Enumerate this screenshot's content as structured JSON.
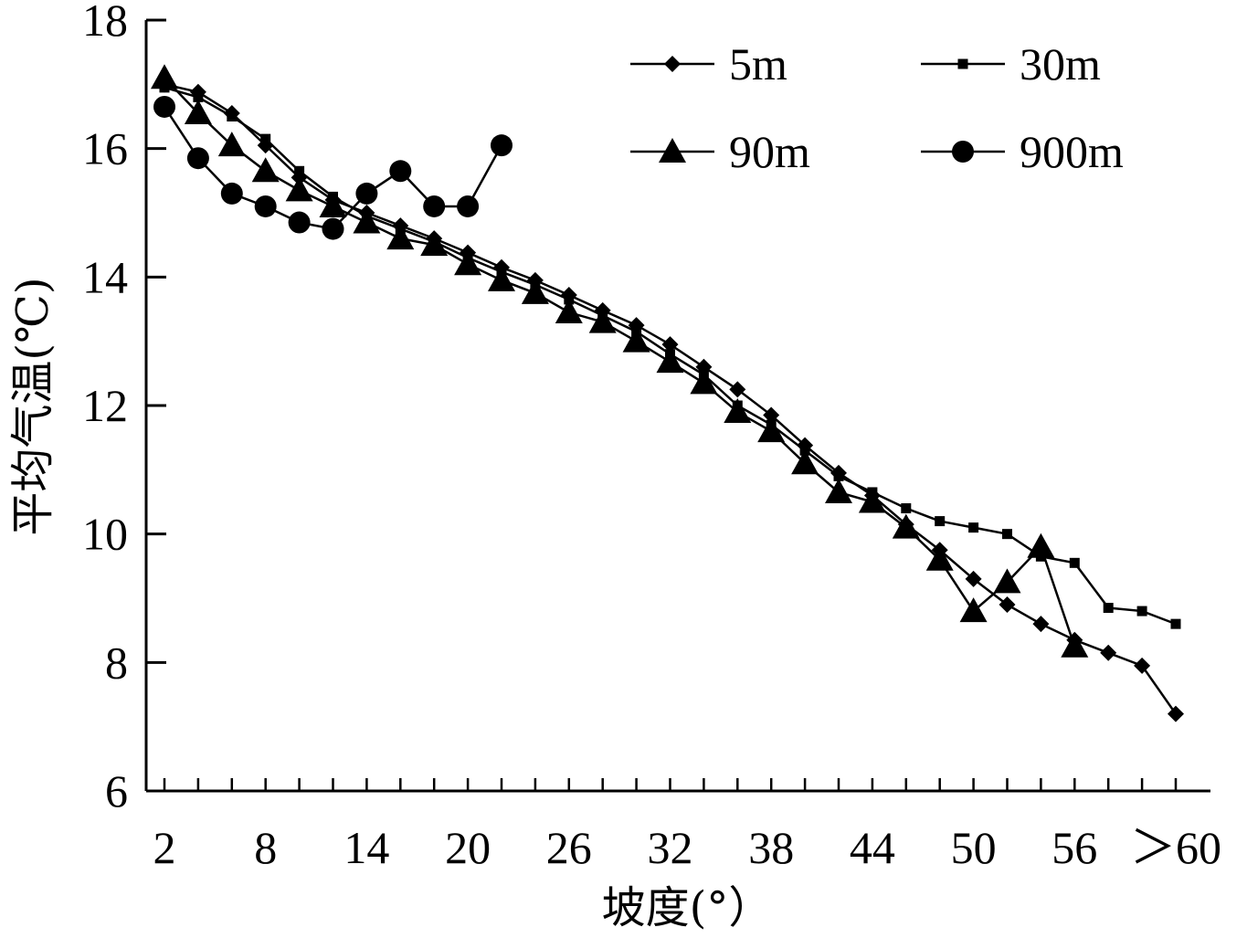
{
  "chart_data": {
    "type": "line",
    "xlabel": "坡度(°）",
    "ylabel": "平均气温(℃)",
    "ylim": [
      6,
      18
    ],
    "yticks": [
      6,
      8,
      10,
      12,
      14,
      16,
      18
    ],
    "x_categories": [
      "2",
      "4",
      "6",
      "8",
      "10",
      "12",
      "14",
      "16",
      "18",
      "20",
      "22",
      "24",
      "26",
      "28",
      "30",
      "32",
      "34",
      "36",
      "38",
      "40",
      "42",
      "44",
      "46",
      "48",
      "50",
      "52",
      "54",
      "56",
      "58",
      "60",
      "＞60"
    ],
    "x_tick_labels": [
      "2",
      "8",
      "14",
      "20",
      "26",
      "32",
      "38",
      "44",
      "50",
      "56",
      "＞60"
    ],
    "legend": {
      "placement": "top-right",
      "columns": 2
    },
    "grid": false,
    "series": [
      {
        "name": "5m",
        "marker": "diamond",
        "x": [
          "2",
          "4",
          "6",
          "8",
          "10",
          "12",
          "14",
          "16",
          "18",
          "20",
          "22",
          "24",
          "26",
          "28",
          "30",
          "32",
          "34",
          "36",
          "38",
          "40",
          "42",
          "44",
          "46",
          "48",
          "50",
          "52",
          "54",
          "56",
          "58",
          "60",
          "＞60"
        ],
        "values": [
          17.0,
          16.88,
          16.55,
          16.05,
          15.55,
          15.2,
          15.0,
          14.8,
          14.6,
          14.38,
          14.15,
          13.95,
          13.72,
          13.48,
          13.25,
          12.95,
          12.6,
          12.25,
          11.85,
          11.38,
          10.95,
          10.6,
          10.15,
          9.75,
          9.3,
          8.9,
          8.6,
          8.35,
          8.15,
          7.95,
          7.2
        ]
      },
      {
        "name": "30m",
        "marker": "square",
        "x": [
          "2",
          "4",
          "6",
          "8",
          "10",
          "12",
          "14",
          "16",
          "18",
          "20",
          "22",
          "24",
          "26",
          "28",
          "30",
          "32",
          "34",
          "36",
          "38",
          "40",
          "42",
          "44",
          "46",
          "48",
          "50",
          "52",
          "54",
          "56",
          "58",
          "60",
          "＞60"
        ],
        "values": [
          16.95,
          16.8,
          16.5,
          16.15,
          15.65,
          15.25,
          14.95,
          14.75,
          14.55,
          14.3,
          14.08,
          13.88,
          13.65,
          13.4,
          13.15,
          12.8,
          12.48,
          12.0,
          11.7,
          11.3,
          10.9,
          10.65,
          10.4,
          10.2,
          10.1,
          10.0,
          9.65,
          9.55,
          8.85,
          8.8,
          8.6
        ]
      },
      {
        "name": "90m",
        "marker": "triangle",
        "x": [
          "2",
          "4",
          "6",
          "8",
          "10",
          "12",
          "14",
          "16",
          "18",
          "20",
          "22",
          "24",
          "26",
          "28",
          "30",
          "32",
          "34",
          "36",
          "38",
          "40",
          "42",
          "44",
          "46",
          "48",
          "50",
          "52",
          "54",
          "56"
        ],
        "values": [
          17.1,
          16.55,
          16.05,
          15.65,
          15.35,
          15.1,
          14.85,
          14.6,
          14.5,
          14.2,
          13.95,
          13.75,
          13.45,
          13.3,
          13.0,
          12.68,
          12.35,
          11.9,
          11.6,
          11.1,
          10.65,
          10.5,
          10.1,
          9.6,
          8.8,
          9.25,
          9.8,
          8.25
        ]
      },
      {
        "name": "900m",
        "marker": "circle",
        "x": [
          "2",
          "4",
          "6",
          "8",
          "10",
          "12",
          "14",
          "16",
          "18",
          "20",
          "22"
        ],
        "values": [
          16.65,
          15.85,
          15.3,
          15.1,
          14.85,
          14.75,
          15.3,
          15.65,
          15.1,
          15.1,
          16.05
        ]
      }
    ]
  }
}
